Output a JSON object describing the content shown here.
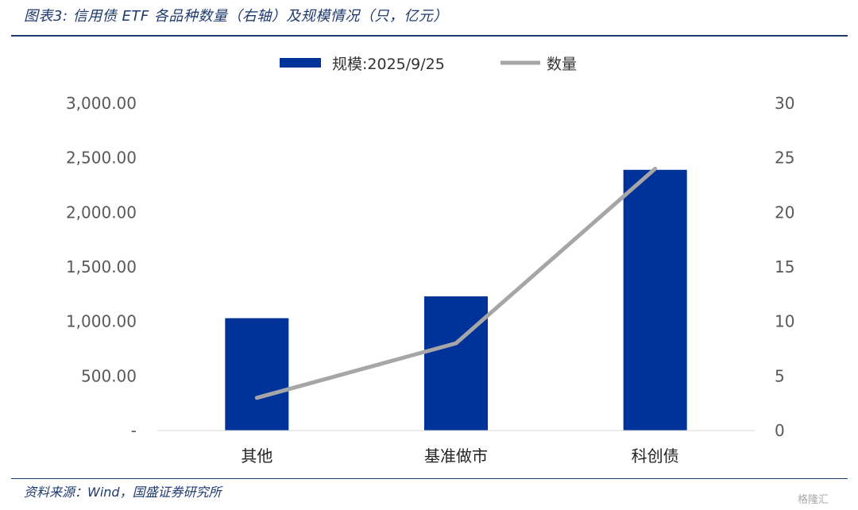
{
  "header": {
    "title": "图表3: 信用债 ETF 各品种数量（右轴）及规模情况（只，亿元）"
  },
  "footer": {
    "source": "资料来源：Wind，国盛证券研究所",
    "watermark": "格隆汇"
  },
  "colors": {
    "bar": "#003399",
    "line": "#a6a6a6",
    "title": "#1f3a6e"
  },
  "chart_data": {
    "type": "bar",
    "categories": [
      "其他",
      "基准做市",
      "科创债"
    ],
    "series": [
      {
        "name": "规模:2025/9/25",
        "type": "bar",
        "axis": "left",
        "values": [
          1030,
          1230,
          2390
        ]
      },
      {
        "name": "数量",
        "type": "line",
        "axis": "right",
        "values": [
          3,
          8,
          24
        ]
      }
    ],
    "left_axis": {
      "ylim": [
        0,
        3000
      ],
      "ticks": [
        "-",
        "500.00",
        "1,000.00",
        "1,500.00",
        "2,000.00",
        "2,500.00",
        "3,000.00"
      ]
    },
    "right_axis": {
      "ylim": [
        0,
        30
      ],
      "ticks": [
        "0",
        "5",
        "10",
        "15",
        "20",
        "25",
        "30"
      ]
    },
    "legend": "top-center",
    "grid": false
  }
}
